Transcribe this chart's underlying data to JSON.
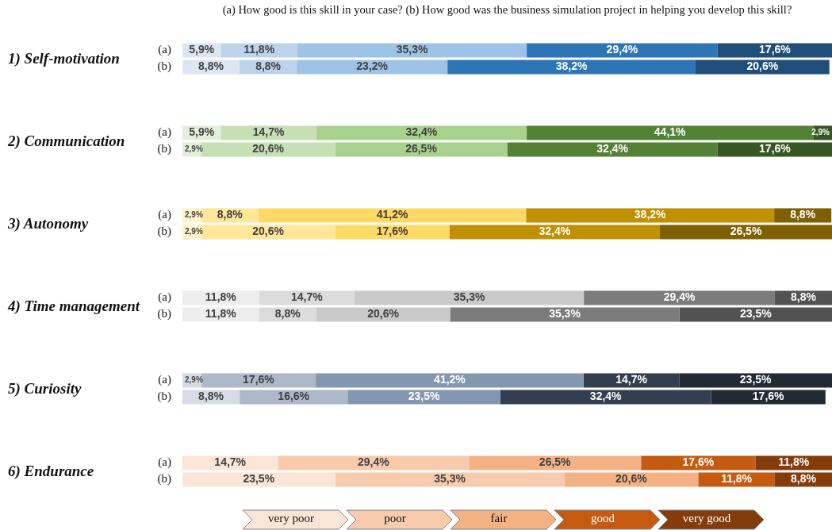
{
  "chart_data": [
    {
      "type": "bar",
      "orientation": "horizontal",
      "stacked": true,
      "title": "(a) How good is this skill in your case?  (b) How good was the business simulation project in helping you develop this skill?",
      "ylabel": "1) Self-motivation",
      "categories": [
        "(a)",
        "(b)"
      ],
      "tick_labels": "y",
      "series": [
        {
          "color": "#dce6f2",
          "values": [
            5.9,
            8.8
          ],
          "value_labels": [
            "5,9%",
            "8,8%"
          ]
        },
        {
          "color": "#bdd3ec",
          "values": [
            11.8,
            8.8
          ],
          "value_labels": [
            "11,8%",
            "8,8%"
          ]
        },
        {
          "color": "#9dc3e6",
          "values": [
            35.3,
            23.2
          ],
          "value_labels": [
            "35,3%",
            "23,2%"
          ]
        },
        {
          "color": "#2e75b6",
          "values": [
            29.4,
            38.2
          ],
          "value_labels": [
            "29,4%",
            "38,2%"
          ]
        },
        {
          "color": "#1f4e79",
          "values": [
            17.6,
            20.6
          ],
          "value_labels": [
            "17,6%",
            "20,6%"
          ]
        }
      ]
    },
    {
      "type": "bar",
      "orientation": "horizontal",
      "stacked": true,
      "ylabel": "2) Communication",
      "categories": [
        "(a)",
        "(b)"
      ],
      "tick_labels": "y",
      "series": [
        {
          "color": "#e2efd9",
          "values": [
            5.9,
            2.9
          ],
          "value_labels": [
            "5,9%",
            "2,9%"
          ]
        },
        {
          "color": "#c5e0b4",
          "values": [
            14.7,
            20.6
          ],
          "value_labels": [
            "14,7%",
            "20,6%"
          ]
        },
        {
          "color": "#a9d18e",
          "values": [
            32.4,
            26.5
          ],
          "value_labels": [
            "32,4%",
            "26,5%"
          ]
        },
        {
          "color": "#548235",
          "values": [
            44.1,
            32.4
          ],
          "value_labels": [
            "44,1%",
            "32,4%"
          ]
        },
        {
          "color": "#375623",
          "values": [
            2.9,
            17.6
          ],
          "value_labels": [
            "2,9%",
            "17,6%"
          ]
        }
      ]
    },
    {
      "type": "bar",
      "orientation": "horizontal",
      "stacked": true,
      "ylabel": "3) Autonomy",
      "categories": [
        "(a)",
        "(b)"
      ],
      "tick_labels": "y",
      "series": [
        {
          "color": "#fff2cc",
          "values": [
            2.9,
            2.9
          ],
          "value_labels": [
            "2,9%",
            "2,9%"
          ]
        },
        {
          "color": "#ffe699",
          "values": [
            8.8,
            20.6
          ],
          "value_labels": [
            "8,8%",
            "20,6%"
          ]
        },
        {
          "color": "#ffd966",
          "values": [
            41.2,
            17.6
          ],
          "value_labels": [
            "41,2%",
            "17,6%"
          ]
        },
        {
          "color": "#bf9000",
          "values": [
            38.2,
            32.4
          ],
          "value_labels": [
            "38,2%",
            "32,4%"
          ]
        },
        {
          "color": "#7f6000",
          "values": [
            8.8,
            26.5
          ],
          "value_labels": [
            "8,8%",
            "26,5%"
          ]
        }
      ]
    },
    {
      "type": "bar",
      "orientation": "horizontal",
      "stacked": true,
      "ylabel": "4) Time management",
      "categories": [
        "(a)",
        "(b)"
      ],
      "tick_labels": "y",
      "series": [
        {
          "color": "#ededed",
          "values": [
            11.8,
            11.8
          ],
          "value_labels": [
            "11,8%",
            "11,8%"
          ]
        },
        {
          "color": "#dbdbdb",
          "values": [
            14.7,
            8.8
          ],
          "value_labels": [
            "14,7%",
            "8,8%"
          ]
        },
        {
          "color": "#c9c9c9",
          "values": [
            35.3,
            20.6
          ],
          "value_labels": [
            "35,3%",
            "20,6%"
          ]
        },
        {
          "color": "#7b7b7b",
          "values": [
            29.4,
            35.3
          ],
          "value_labels": [
            "29,4%",
            "35,3%"
          ]
        },
        {
          "color": "#525252",
          "values": [
            8.8,
            23.5
          ],
          "value_labels": [
            "8,8%",
            "23,5%"
          ]
        }
      ]
    },
    {
      "type": "bar",
      "orientation": "horizontal",
      "stacked": true,
      "ylabel": "5) Curiosity",
      "categories": [
        "(a)",
        "(b)"
      ],
      "tick_labels": "y",
      "series": [
        {
          "color": "#d6dce5",
          "values": [
            2.9,
            8.8
          ],
          "value_labels": [
            "2,9%",
            "8,8%"
          ]
        },
        {
          "color": "#adb9ca",
          "values": [
            17.6,
            16.6
          ],
          "value_labels": [
            "17,6%",
            "16,6%"
          ]
        },
        {
          "color": "#8497b0",
          "values": [
            41.2,
            23.5
          ],
          "value_labels": [
            "41,2%",
            "23,5%"
          ]
        },
        {
          "color": "#333f50",
          "values": [
            14.7,
            32.4
          ],
          "value_labels": [
            "14,7%",
            "32,4%"
          ]
        },
        {
          "color": "#222a35",
          "values": [
            23.5,
            17.6
          ],
          "value_labels": [
            "23,5%",
            "17,6%"
          ]
        }
      ]
    },
    {
      "type": "bar",
      "orientation": "horizontal",
      "stacked": true,
      "ylabel": "6) Endurance",
      "categories": [
        "(a)",
        "(b)"
      ],
      "tick_labels": "y",
      "legend": "bottom",
      "series": [
        {
          "name": "very poor",
          "color": "#fbe5d6",
          "values": [
            14.7,
            23.5
          ],
          "value_labels": [
            "14,7%",
            "23,5%"
          ]
        },
        {
          "name": "poor",
          "color": "#f8cbad",
          "values": [
            29.4,
            35.3
          ],
          "value_labels": [
            "29,4%",
            "35,3%"
          ]
        },
        {
          "name": "fair",
          "color": "#f4b183",
          "values": [
            26.5,
            20.6
          ],
          "value_labels": [
            "26,5%",
            "20,6%"
          ]
        },
        {
          "name": "good",
          "color": "#c55a11",
          "values": [
            17.6,
            11.8
          ],
          "value_labels": [
            "17,6%",
            "11,8%"
          ]
        },
        {
          "name": "very good",
          "color": "#843c0c",
          "values": [
            11.8,
            8.8
          ],
          "value_labels": [
            "11,8%",
            "8,8%"
          ]
        }
      ]
    }
  ]
}
